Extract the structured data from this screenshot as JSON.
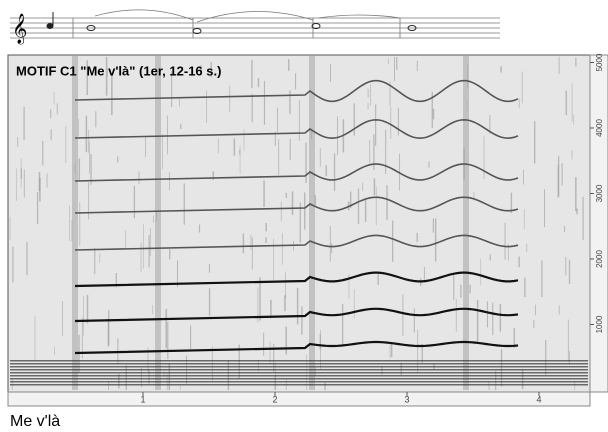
{
  "title": "MOTIF C1 \"Me v'là\" (1er, 12-16 s.)",
  "caption": "Me v'là",
  "x_axis": {
    "ticks": [
      1,
      2,
      3,
      4
    ]
  },
  "y_axis": {
    "ticks": [
      1000,
      2000,
      3000,
      4000,
      5000
    ]
  }
}
